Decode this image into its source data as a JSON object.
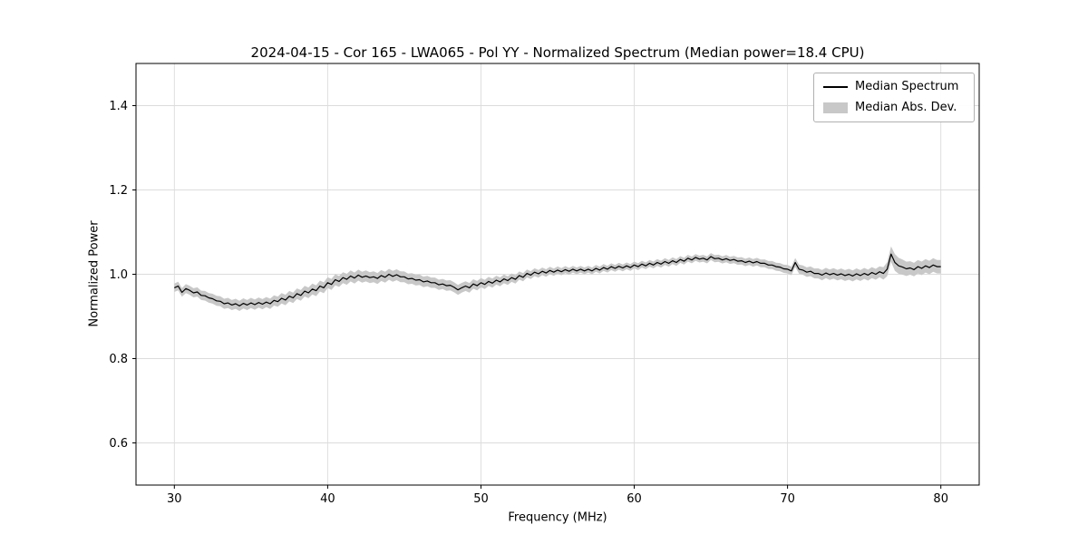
{
  "figure": {
    "title": "2024-04-15 - Cor 165 - LWA065 - Pol YY - Normalized Spectrum (Median power=18.4 CPU)",
    "xlabel": "Frequency (MHz)",
    "ylabel": "Normalized Power"
  },
  "legend": {
    "items": [
      {
        "label": "Median Spectrum",
        "type": "line",
        "color": "#000000"
      },
      {
        "label": "Median Abs. Dev.",
        "type": "band",
        "color": "#c8c8c8"
      }
    ]
  },
  "chart_data": {
    "type": "line",
    "title": "2024-04-15 - Cor 165 - LWA065 - Pol YY - Normalized Spectrum (Median power=18.4 CPU)",
    "xlabel": "Frequency (MHz)",
    "ylabel": "Normalized Power",
    "xlim": [
      27.5,
      82.5
    ],
    "ylim": [
      0.5,
      1.5
    ],
    "xticks": [
      30,
      40,
      50,
      60,
      70,
      80
    ],
    "xtick_labels": [
      "30",
      "40",
      "50",
      "60",
      "70",
      "80"
    ],
    "yticks": [
      0.6,
      0.8,
      1.0,
      1.2,
      1.4
    ],
    "ytick_labels": [
      "0.6",
      "0.8",
      "1.0",
      "1.2",
      "1.4"
    ],
    "grid": true,
    "legend_position": "upper right",
    "line_color": "#000000",
    "band_color": "#c8c8c8",
    "grid_color": "#dcdcdc",
    "x_start": 30.0,
    "x_step": 0.25,
    "series": [
      {
        "name": "Median Spectrum",
        "values": [
          0.968,
          0.972,
          0.957,
          0.966,
          0.962,
          0.956,
          0.958,
          0.95,
          0.949,
          0.944,
          0.942,
          0.937,
          0.936,
          0.93,
          0.932,
          0.927,
          0.93,
          0.925,
          0.931,
          0.927,
          0.932,
          0.928,
          0.933,
          0.929,
          0.934,
          0.93,
          0.938,
          0.935,
          0.943,
          0.939,
          0.948,
          0.944,
          0.954,
          0.95,
          0.96,
          0.956,
          0.965,
          0.961,
          0.972,
          0.968,
          0.98,
          0.976,
          0.987,
          0.983,
          0.992,
          0.988,
          0.996,
          0.991,
          0.998,
          0.993,
          0.996,
          0.992,
          0.994,
          0.99,
          0.997,
          0.993,
          1.0,
          0.995,
          0.999,
          0.994,
          0.994,
          0.989,
          0.99,
          0.986,
          0.987,
          0.982,
          0.984,
          0.98,
          0.98,
          0.975,
          0.977,
          0.973,
          0.974,
          0.969,
          0.963,
          0.968,
          0.972,
          0.968,
          0.977,
          0.973,
          0.98,
          0.976,
          0.983,
          0.979,
          0.986,
          0.982,
          0.989,
          0.985,
          0.992,
          0.988,
          0.997,
          0.993,
          1.002,
          0.998,
          1.005,
          1.001,
          1.007,
          1.003,
          1.009,
          1.005,
          1.01,
          1.006,
          1.011,
          1.007,
          1.012,
          1.008,
          1.012,
          1.008,
          1.012,
          1.008,
          1.014,
          1.01,
          1.016,
          1.012,
          1.018,
          1.014,
          1.019,
          1.015,
          1.02,
          1.016,
          1.022,
          1.018,
          1.024,
          1.02,
          1.026,
          1.022,
          1.028,
          1.024,
          1.03,
          1.026,
          1.032,
          1.028,
          1.035,
          1.031,
          1.038,
          1.034,
          1.04,
          1.036,
          1.038,
          1.034,
          1.042,
          1.037,
          1.038,
          1.034,
          1.037,
          1.033,
          1.035,
          1.031,
          1.032,
          1.028,
          1.031,
          1.027,
          1.03,
          1.026,
          1.026,
          1.022,
          1.022,
          1.018,
          1.017,
          1.013,
          1.012,
          1.008,
          1.028,
          1.012,
          1.01,
          1.005,
          1.007,
          1.002,
          1.002,
          0.998,
          1.003,
          0.999,
          1.002,
          0.998,
          1.001,
          0.997,
          1.0,
          0.996,
          1.001,
          0.997,
          1.002,
          0.998,
          1.004,
          1.0,
          1.006,
          1.002,
          1.012,
          1.048,
          1.028,
          1.02,
          1.017,
          1.013,
          1.015,
          1.011,
          1.018,
          1.014,
          1.02,
          1.016,
          1.022,
          1.018,
          1.018
        ]
      }
    ],
    "mad": {
      "name": "Median Abs. Dev.",
      "x": [
        30,
        33,
        36,
        40,
        44,
        48,
        52,
        56,
        60,
        64,
        68,
        70,
        72,
        74,
        76,
        77,
        78,
        80
      ],
      "halfwidth": [
        0.01,
        0.012,
        0.012,
        0.013,
        0.013,
        0.012,
        0.01,
        0.008,
        0.008,
        0.008,
        0.009,
        0.01,
        0.012,
        0.013,
        0.013,
        0.02,
        0.016,
        0.016
      ]
    }
  }
}
